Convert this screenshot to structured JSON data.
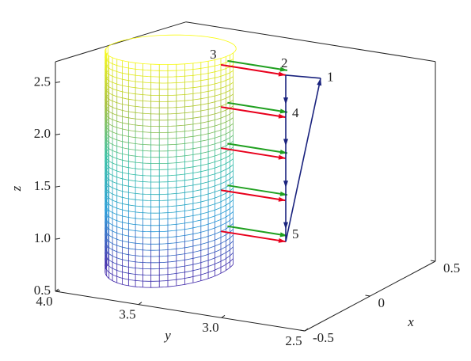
{
  "chart_data": {
    "type": "cylinder3d",
    "xlabel": "x",
    "ylabel": "y",
    "zlabel": "z",
    "xlim": [
      -0.5,
      0.5
    ],
    "ylim": [
      2.5,
      4
    ],
    "zlim": [
      0.5,
      2.7
    ],
    "xticks": [
      -0.5,
      0,
      0.5
    ],
    "yticks": [
      {
        "value": 4,
        "label": "4.0"
      },
      3.5,
      {
        "value": 3,
        "label": "3.0"
      },
      2.5
    ],
    "zticks": [
      0.5,
      {
        "value": 1,
        "label": "1.0"
      },
      1.5,
      {
        "value": 2,
        "label": "2.0"
      },
      2.5
    ],
    "cylinder": {
      "center_x": 0,
      "center_y": 3.7,
      "radius": 0.31,
      "z": [
        0.5,
        2.7
      ],
      "colormap": [
        "#3e26a8",
        "#1f96d6",
        "#2fbda0",
        "#a3bd34",
        "#f9fb0e"
      ]
    },
    "path": {
      "color": "#1a237e",
      "x": [
        0.067,
        -0.2,
        -0.2,
        -0.2,
        -0.2,
        -0.2,
        0.067
      ],
      "y": [
        2.85,
        2.85,
        2.85,
        2.85,
        2.85,
        2.85,
        2.85
      ],
      "z": [
        2.61,
        2.75,
        2.33,
        1.92,
        1.5,
        1.09,
        2.61
      ]
    },
    "vectors": [
      {
        "color": "#20a020",
        "x": -0.15,
        "y_start": 3.24,
        "y_end": 2.88,
        "z": [
          2.77,
          2.35,
          1.94,
          1.52,
          1.11
        ]
      },
      {
        "color": "#e8001c",
        "x": -0.2,
        "y_start": 3.24,
        "y_end": 2.85,
        "z": [
          2.75,
          2.33,
          1.92,
          1.5,
          1.09
        ]
      }
    ],
    "point_labels": [
      {
        "text": "1",
        "x": 0.067,
        "y": 2.85,
        "z": 2.61
      },
      {
        "text": "2",
        "x": -0.2,
        "y": 2.85,
        "z": 2.75
      },
      {
        "text": "3",
        "x": -0.2,
        "y": 3.24,
        "z": 2.75
      },
      {
        "text": "4",
        "x": -0.2,
        "y": 2.85,
        "z": 2.33
      },
      {
        "text": "5",
        "x": -0.2,
        "y": 2.85,
        "z": 1.09
      }
    ]
  }
}
